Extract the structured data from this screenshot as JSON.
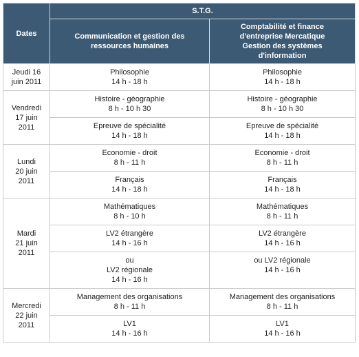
{
  "header": {
    "dates_label": "Dates",
    "group_label": "S.T.G.",
    "col1": [
      "Communication et gestion des",
      "ressources humaines"
    ],
    "col2": [
      "Comptabilité et finance",
      "d'entreprise Mercatique",
      "Gestion des systèmes",
      "d'information"
    ]
  },
  "days": [
    {
      "date": [
        "Jeudi 16",
        "juin 2011"
      ],
      "slots": [
        {
          "c1": [
            "Philosophie",
            "14 h - 18 h"
          ],
          "c2": [
            "Philosophie",
            "14 h - 18 h"
          ]
        }
      ]
    },
    {
      "date": [
        "Vendredi",
        "17 juin",
        "2011"
      ],
      "slots": [
        {
          "c1": [
            "Histoire - géographie",
            "8 h - 10 h 30"
          ],
          "c2": [
            "Histoire - géographie",
            "8 h - 10 h 30"
          ]
        },
        {
          "c1": [
            "Epreuve de spécialité",
            "14 h - 18 h"
          ],
          "c2": [
            "Epreuve de spécialité",
            "14 h - 18 h"
          ]
        }
      ]
    },
    {
      "date": [
        "Lundi",
        "20 juin",
        "2011"
      ],
      "slots": [
        {
          "c1": [
            "Economie - droit",
            "8 h - 11 h"
          ],
          "c2": [
            "Economie - droit",
            "8 h - 11 h"
          ]
        },
        {
          "c1": [
            "Français",
            "14 h - 18 h"
          ],
          "c2": [
            "Français",
            "14 h - 18 h"
          ]
        }
      ]
    },
    {
      "date": [
        "Mardi",
        "21 juin",
        "2011"
      ],
      "slots": [
        {
          "c1": [
            "Mathématiques",
            "8 h - 10 h"
          ],
          "c2": [
            "Mathématiques",
            "8 h - 11 h"
          ]
        },
        {
          "c1": [
            "LV2 étrangère",
            "14 h - 16 h"
          ],
          "c2": [
            "LV2 étrangère",
            "14 h - 16 h"
          ]
        },
        {
          "c1": [
            "ou",
            "LV2 régionale",
            "14 h - 16 h"
          ],
          "c2": [
            "ou LV2 régionale",
            "14 h - 16 h"
          ]
        }
      ]
    },
    {
      "date": [
        "Mercredi",
        "22 juin",
        "2011"
      ],
      "slots": [
        {
          "c1": [
            "Management des organisations",
            "8 h - 11 h"
          ],
          "c2": [
            "Management des organisations",
            "8 h - 11 h"
          ]
        },
        {
          "c1": [
            "LV1",
            "14 h - 16 h"
          ],
          "c2": [
            "LV1",
            "14 h - 16 h"
          ]
        }
      ]
    }
  ]
}
